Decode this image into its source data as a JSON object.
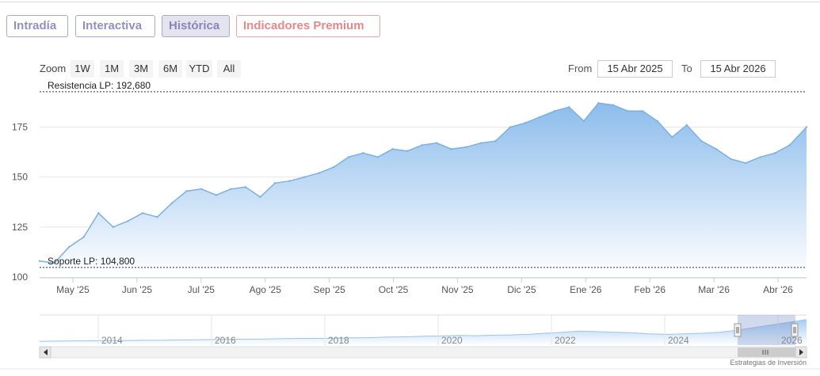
{
  "tabs": {
    "intradia": "Intradía",
    "interactiva": "Interactiva",
    "historica": "Histórica",
    "premium": "Indicadores Premium"
  },
  "range_selector": {
    "zoom_label": "Zoom",
    "buttons": [
      "1W",
      "1M",
      "3M",
      "6M",
      "YTD",
      "All"
    ],
    "from_label": "From",
    "from_value": "15 Abr 2025",
    "to_label": "To",
    "to_value": "15 Abr 2026"
  },
  "footer": "Estrategias de Inversión",
  "colors": {
    "line": "#7cb0e0",
    "fill_top": "#8cbcec",
    "fill_bottom": "#ffffff",
    "plotline": "#333333"
  },
  "chart_data": {
    "type": "area",
    "title": "",
    "xlabel": "",
    "ylabel": "",
    "ylim": [
      100,
      195
    ],
    "yticks": [
      100,
      125,
      150,
      175
    ],
    "xticks": [
      "May '25",
      "Jun '25",
      "Jul '25",
      "Ago '25",
      "Sep '25",
      "Oct '25",
      "Nov '25",
      "Dic '25",
      "Ene '26",
      "Feb '26",
      "Mar '26",
      "Abr '26"
    ],
    "grid": true,
    "plot_lines": [
      {
        "label": "Resistencia LP: 192,680",
        "value": 192.68
      },
      {
        "label": "Soporte LP: 104,800",
        "value": 104.8
      }
    ],
    "series": [
      {
        "x": [
          "2025-04-15",
          "2025-04-22",
          "2025-04-29",
          "2025-05-06",
          "2025-05-13",
          "2025-05-20",
          "2025-05-27",
          "2025-06-03",
          "2025-06-10",
          "2025-06-17",
          "2025-06-24",
          "2025-07-01",
          "2025-07-08",
          "2025-07-15",
          "2025-07-22",
          "2025-07-29",
          "2025-08-05",
          "2025-08-12",
          "2025-08-19",
          "2025-08-26",
          "2025-09-02",
          "2025-09-09",
          "2025-09-16",
          "2025-09-23",
          "2025-09-30",
          "2025-10-07",
          "2025-10-14",
          "2025-10-21",
          "2025-10-28",
          "2025-11-04",
          "2025-11-11",
          "2025-11-18",
          "2025-11-25",
          "2025-12-02",
          "2025-12-09",
          "2025-12-16",
          "2025-12-23",
          "2025-12-30",
          "2026-01-06",
          "2026-01-13",
          "2026-01-20",
          "2026-01-27",
          "2026-02-03",
          "2026-02-10",
          "2026-02-17",
          "2026-02-24",
          "2026-03-03",
          "2026-03-10",
          "2026-03-17",
          "2026-03-24",
          "2026-03-31",
          "2026-04-07",
          "2026-04-15"
        ],
        "values": [
          108,
          107,
          115,
          120,
          132,
          125,
          128,
          132,
          130,
          137,
          143,
          144,
          141,
          144,
          145,
          140,
          147,
          148,
          150,
          152,
          155,
          160,
          162,
          160,
          164,
          163,
          166,
          167,
          164,
          165,
          167,
          168,
          175,
          177,
          180,
          183,
          185,
          178,
          187,
          186,
          183,
          183,
          178,
          170,
          176,
          168,
          164,
          159,
          157,
          160,
          162,
          166,
          175
        ]
      }
    ],
    "navigator": {
      "xticks": [
        "2014",
        "2016",
        "2018",
        "2020",
        "2022",
        "2024",
        "2026"
      ],
      "values": [
        14,
        15,
        16,
        16,
        17,
        17,
        18,
        18,
        19,
        20,
        21,
        22,
        22,
        23,
        24,
        25,
        25,
        26,
        27,
        28,
        30,
        31,
        33,
        34,
        36,
        35,
        37,
        38,
        40,
        44,
        48,
        52,
        50,
        48,
        46,
        42,
        40,
        42,
        44,
        48,
        55,
        65,
        75,
        85,
        95
      ]
    }
  }
}
